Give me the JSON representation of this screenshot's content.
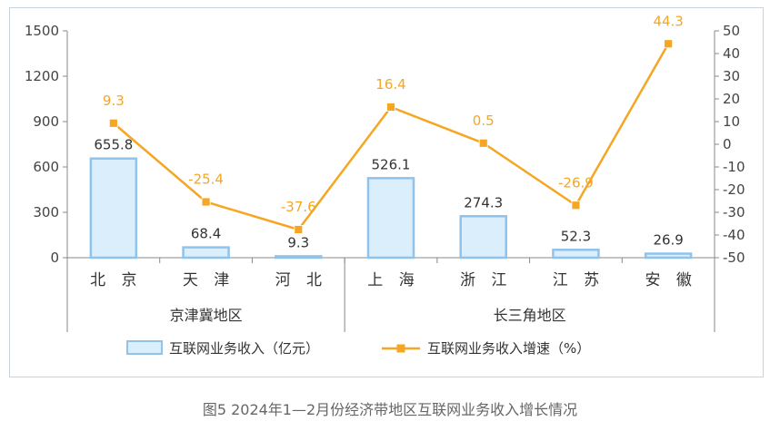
{
  "chart_data": {
    "type": "bar",
    "categories": [
      "北 京",
      "天 津",
      "河 北",
      "上 海",
      "浙 江",
      "江 苏",
      "安 徽"
    ],
    "groups": [
      {
        "label": "京津冀地区",
        "categories": [
          0,
          1,
          2
        ]
      },
      {
        "label": "长三角地区",
        "categories": [
          3,
          4,
          5,
          6
        ]
      }
    ],
    "series": [
      {
        "name": "互联网业务收入（亿元）",
        "type": "bar",
        "axis": "left",
        "values": [
          655.8,
          68.4,
          9.3,
          526.1,
          274.3,
          52.3,
          26.9
        ],
        "labels": [
          "655.8",
          "68.4",
          "9.3",
          "526.1",
          "274.3",
          "52.3",
          "26.9"
        ]
      },
      {
        "name": "互联网业务收入增速（%）",
        "type": "line",
        "axis": "right",
        "values": [
          9.3,
          -25.4,
          -37.6,
          16.4,
          0.5,
          -26.9,
          44.3
        ],
        "labels": [
          "9.3",
          "-25.4",
          "-37.6",
          "16.4",
          "0.5",
          "-26.9",
          "44.3"
        ]
      }
    ],
    "ylim": [
      0,
      1500
    ],
    "yticks": [
      "0",
      "300",
      "600",
      "900",
      "1200",
      "1500"
    ],
    "y2lim": [
      -50,
      50
    ],
    "y2ticks": [
      "-50",
      "-40",
      "-30",
      "-20",
      "-10",
      "0",
      "10",
      "20",
      "30",
      "40",
      "50"
    ],
    "legend_position": "bottom",
    "colors": {
      "bar_fill": "#dbeefb",
      "bar_stroke": "#8fc3ec",
      "line": "#f5a623",
      "axis": "#888888"
    }
  },
  "caption": "图5  2024年1—2月份经济带地区互联网业务收入增长情况"
}
